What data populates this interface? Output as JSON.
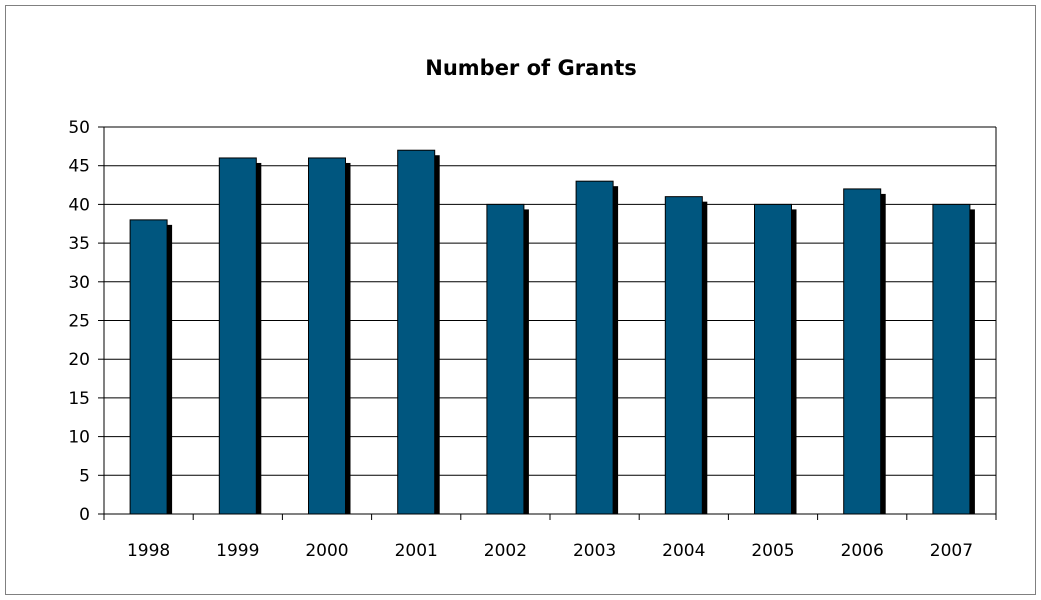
{
  "chart_data": {
    "type": "bar",
    "title": "Number of Grants",
    "xlabel": "",
    "ylabel": "",
    "categories": [
      "1998",
      "1999",
      "2000",
      "2001",
      "2002",
      "2003",
      "2004",
      "2005",
      "2006",
      "2007"
    ],
    "series": [
      {
        "values": [
          38,
          46,
          46,
          47,
          40,
          43,
          41,
          40,
          42,
          40
        ]
      }
    ],
    "ylim": [
      0,
      50
    ],
    "yticks": [
      0,
      5,
      10,
      15,
      20,
      25,
      30,
      35,
      40,
      45,
      50
    ],
    "grid": true,
    "legend": "none",
    "colors": {
      "bar": "#00567F",
      "shadow": "#000000",
      "grid": "#000000",
      "border": "#808080"
    }
  }
}
